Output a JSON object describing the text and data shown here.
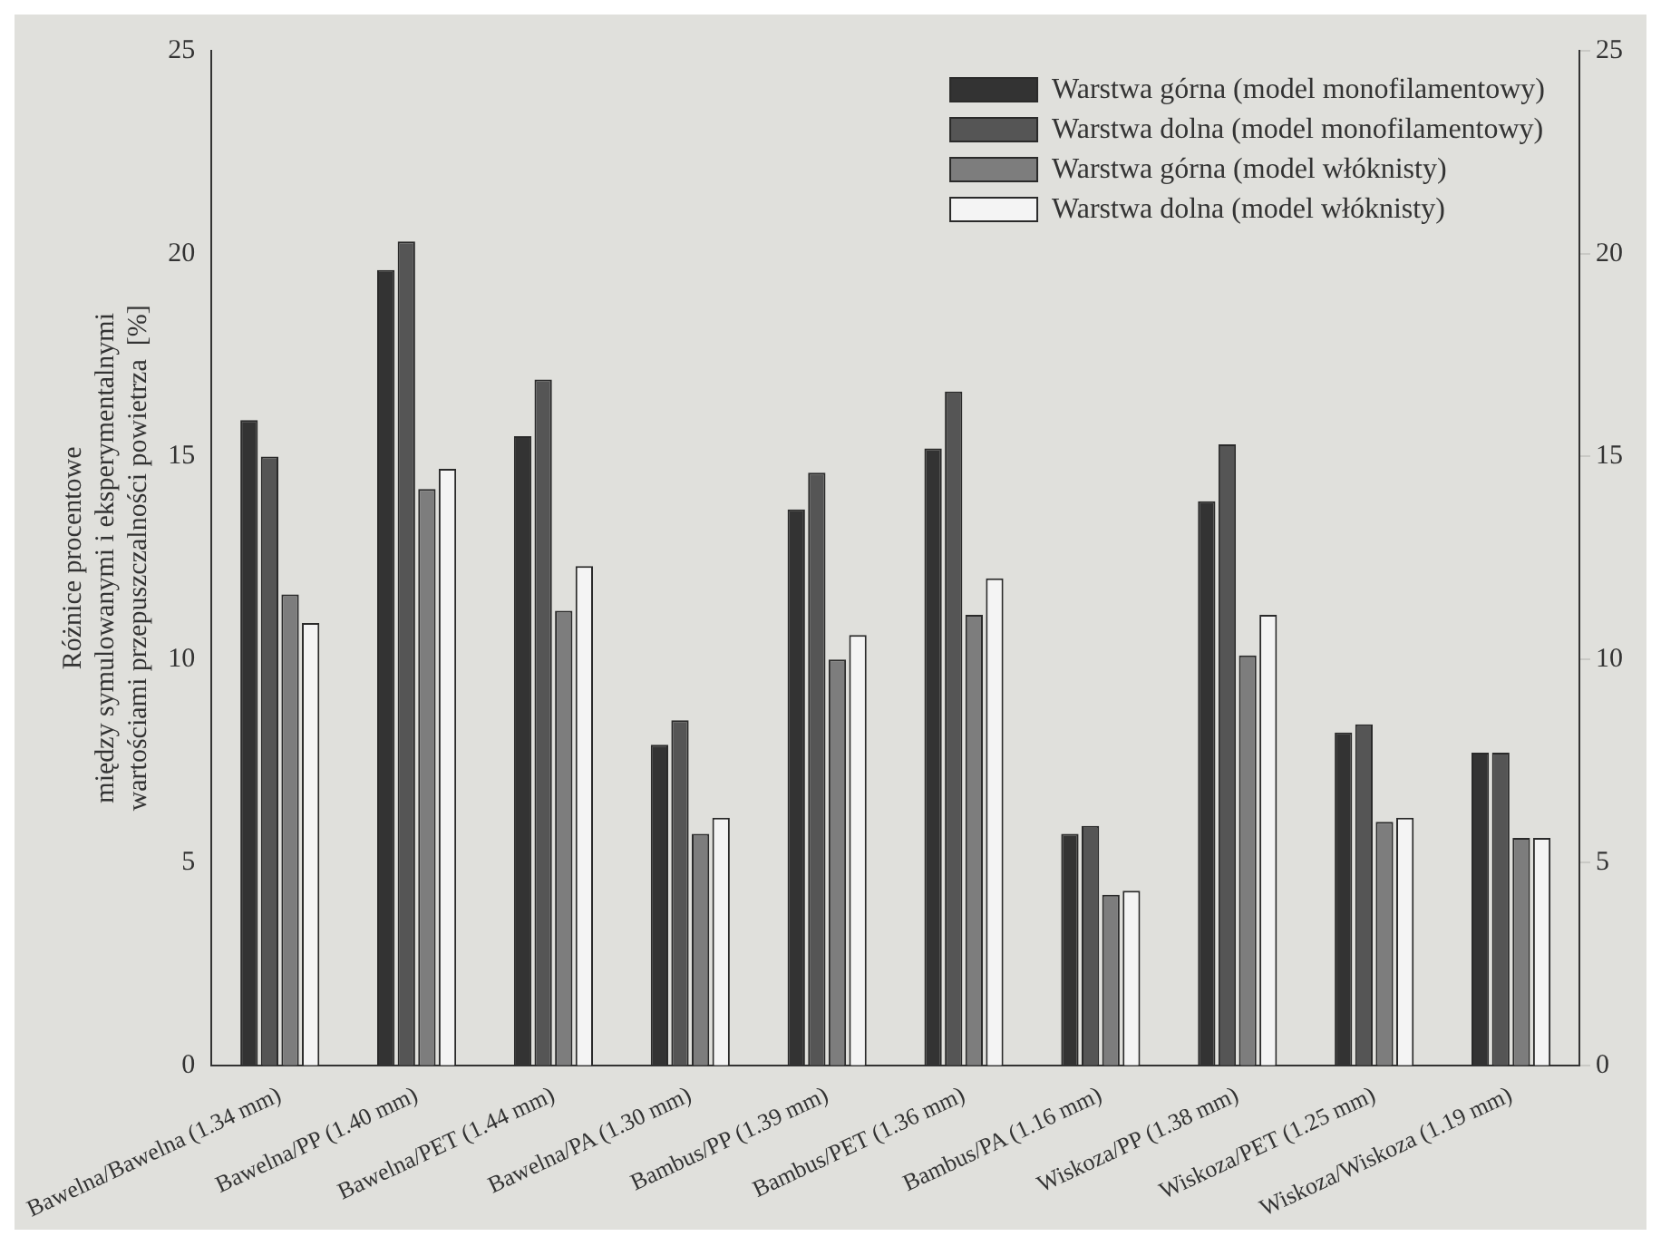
{
  "chart_data": {
    "type": "bar",
    "ylabel": "Różnice procentowe\nmiędzy symulowanymi i eksperymentalnymi\nwartościami przepuszczalności powietrza  [%]",
    "categories": [
      "Bawelna/Bawelna (1.34 mm)",
      "Bawelna/PP (1.40 mm)",
      "Bawelna/PET (1.44 mm)",
      "Bawelna/PA (1.30 mm)",
      "Bambus/PP (1.39 mm)",
      "Bambus/PET (1.36 mm)",
      "Bambus/PA (1.16 mm)",
      "Wiskoza/PP (1.38 mm)",
      "Wiskoza/PET (1.25 mm)",
      "Wiskoza/Wiskoza (1.19 mm)"
    ],
    "series": [
      {
        "name": "Warstwa górna (model monofilamentowy)",
        "color": "#333333",
        "values": [
          15.9,
          19.6,
          15.5,
          7.9,
          13.7,
          15.2,
          5.7,
          13.9,
          8.2,
          7.7
        ]
      },
      {
        "name": "Warstwa dolna (model monofilamentowy)",
        "color": "#555555",
        "values": [
          15.0,
          20.3,
          16.9,
          8.5,
          14.6,
          16.6,
          5.9,
          15.3,
          8.4,
          7.7
        ]
      },
      {
        "name": "Warstwa górna (model włóknisty)",
        "color": "#7d7d7d",
        "values": [
          11.6,
          14.2,
          11.2,
          5.7,
          10.0,
          11.1,
          4.2,
          10.1,
          6.0,
          5.6
        ]
      },
      {
        "name": "Warstwa dolna (model włóknisty)",
        "color": "#f4f4f4",
        "values": [
          10.9,
          14.7,
          12.3,
          6.1,
          10.6,
          12.0,
          4.3,
          11.1,
          6.1,
          5.6
        ]
      }
    ],
    "ylim": [
      0,
      25
    ],
    "yticks": [
      0,
      5,
      10,
      15,
      20,
      25
    ],
    "y2lim": [
      0,
      25
    ],
    "y2ticks": [
      0,
      5,
      10,
      15,
      20,
      25
    ],
    "grid": false,
    "legend": "top right"
  }
}
